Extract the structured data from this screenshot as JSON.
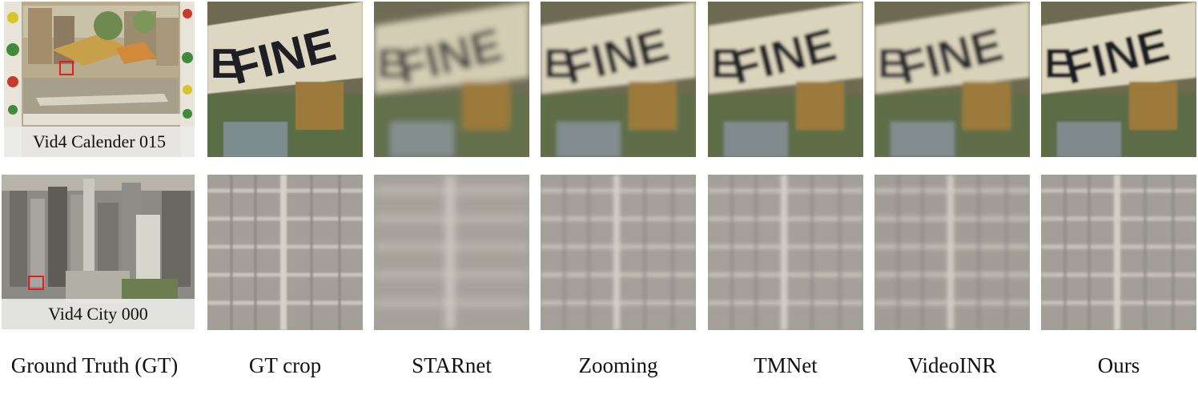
{
  "rows": [
    {
      "label": "Vid4 Calender 015"
    },
    {
      "label": "Vid4 City 000"
    }
  ],
  "sign_text": "FINE",
  "sign_prefix": "E",
  "columns": [
    "Ground Truth (GT)",
    "GT crop",
    "STARnet",
    "Zooming",
    "TMNet",
    "VideoINR",
    "Ours"
  ],
  "colors": {
    "highlight_box": "#e11d1d",
    "label_strip": "#ebebeb"
  }
}
